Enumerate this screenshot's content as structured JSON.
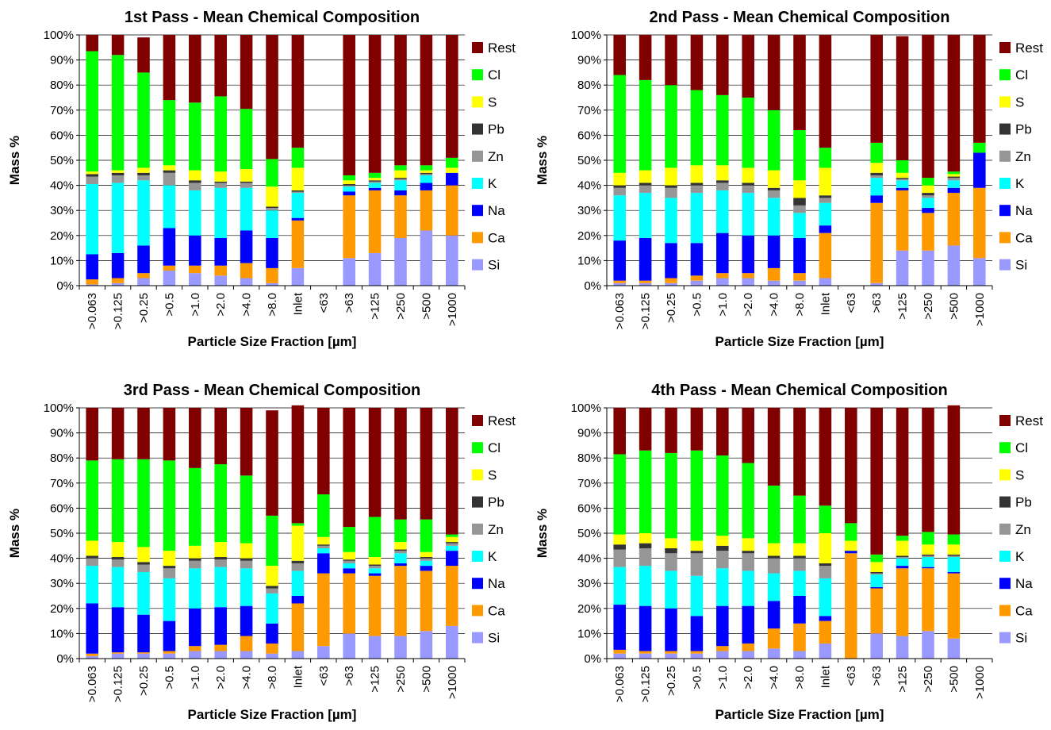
{
  "legend": [
    {
      "key": "rest",
      "label": "Rest",
      "color": "#800000"
    },
    {
      "key": "cl",
      "label": "Cl",
      "color": "#00FF00"
    },
    {
      "key": "s",
      "label": "S",
      "color": "#FFFF00"
    },
    {
      "key": "pb",
      "label": "Pb",
      "color": "#333333"
    },
    {
      "key": "zn",
      "label": "Zn",
      "color": "#969696"
    },
    {
      "key": "k",
      "label": "K",
      "color": "#00FFFF"
    },
    {
      "key": "na",
      "label": "Na",
      "color": "#0000FF"
    },
    {
      "key": "ca",
      "label": "Ca",
      "color": "#FF9900"
    },
    {
      "key": "si",
      "label": "Si",
      "color": "#9999FF"
    }
  ],
  "chart_data": [
    {
      "type": "bar",
      "stacked": true,
      "title": "1st Pass - Mean Chemical Composition",
      "xlabel": "Particle Size Fraction [µm]",
      "ylabel": "Mass %",
      "ylim": [
        0,
        100
      ],
      "yticks": [
        "0%",
        "10%",
        "20%",
        "30%",
        "40%",
        "50%",
        "60%",
        "70%",
        "80%",
        "90%",
        "100%"
      ],
      "legend_position": "right",
      "categories": [
        ">0.063",
        ">0.125",
        ">0.25",
        ">0.5",
        ">1.0",
        ">2.0",
        ">4.0",
        ">8.0",
        "Inlet",
        "<63",
        ">63",
        ">125",
        ">250",
        ">500",
        ">1000"
      ],
      "series": [
        {
          "name": "Si",
          "values": [
            0.5,
            1,
            3,
            6,
            5,
            4,
            3,
            1,
            7,
            0,
            11,
            13,
            19,
            22,
            20
          ]
        },
        {
          "name": "Ca",
          "values": [
            2,
            2,
            2,
            2,
            3,
            4,
            6,
            6,
            19,
            0,
            25,
            25,
            17,
            16,
            20
          ]
        },
        {
          "name": "Na",
          "values": [
            10,
            10,
            11,
            15,
            12,
            11,
            13,
            12,
            1,
            0,
            1.5,
            1,
            2,
            3,
            5
          ]
        },
        {
          "name": "K",
          "values": [
            28,
            28,
            26,
            17,
            18,
            20,
            17,
            11,
            10,
            0,
            2,
            2,
            4,
            3,
            0
          ]
        },
        {
          "name": "Zn",
          "values": [
            3,
            3,
            2,
            5,
            3,
            2,
            2,
            1,
            0.5,
            0,
            0.5,
            0.5,
            0.5,
            0.5,
            0
          ]
        },
        {
          "name": "Pb",
          "values": [
            1,
            1,
            1,
            1,
            1,
            0.5,
            0.5,
            0.5,
            0.5,
            0,
            0.5,
            0.5,
            0.5,
            0.5,
            0
          ]
        },
        {
          "name": "S",
          "values": [
            1,
            1,
            2,
            2,
            4,
            4,
            5,
            8,
            9,
            0,
            1.5,
            1,
            3,
            1,
            2
          ]
        },
        {
          "name": "Cl",
          "values": [
            48,
            46,
            38,
            26,
            27,
            30,
            24,
            11,
            8,
            0,
            2,
            2,
            2,
            2,
            4
          ]
        },
        {
          "name": "Rest",
          "values": [
            6.5,
            8,
            14,
            26,
            27,
            24.5,
            29.5,
            49.5,
            45,
            0,
            56,
            55,
            52,
            52,
            49
          ]
        }
      ]
    },
    {
      "type": "bar",
      "stacked": true,
      "title": "2nd Pass - Mean Chemical Composition",
      "xlabel": "Particle Size Fraction [µm]",
      "ylabel": "Mass %",
      "ylim": [
        0,
        100
      ],
      "yticks": [
        "0%",
        "10%",
        "20%",
        "30%",
        "40%",
        "50%",
        "60%",
        "70%",
        "80%",
        "90%",
        "100%"
      ],
      "legend_position": "right",
      "categories": [
        ">0.063",
        ">0.125",
        ">0.25",
        ">0.5",
        ">1.0",
        ">2.0",
        ">4.0",
        ">8.0",
        "Inlet",
        "<63",
        ">63",
        ">125",
        ">250",
        ">500",
        ">1000"
      ],
      "series": [
        {
          "name": "Si",
          "values": [
            1,
            1,
            1,
            2,
            3,
            3,
            2,
            2,
            3,
            0,
            1,
            14,
            14,
            16,
            11
          ]
        },
        {
          "name": "Ca",
          "values": [
            1,
            1,
            2,
            2,
            2,
            2,
            5,
            3,
            18,
            0,
            32,
            24,
            15,
            21,
            28
          ]
        },
        {
          "name": "Na",
          "values": [
            16,
            17,
            14,
            13,
            16,
            15,
            13,
            14,
            3,
            0,
            3,
            1,
            2,
            2,
            14
          ]
        },
        {
          "name": "K",
          "values": [
            18,
            18,
            18,
            20,
            17,
            17,
            15,
            10,
            9,
            0,
            7,
            3,
            4,
            3,
            0
          ]
        },
        {
          "name": "Zn",
          "values": [
            3,
            3,
            4,
            3,
            3,
            3,
            3,
            3,
            2,
            0,
            1,
            0.5,
            1,
            1,
            0
          ]
        },
        {
          "name": "Pb",
          "values": [
            1,
            1,
            1,
            1,
            1,
            1,
            1,
            3,
            1,
            0,
            1,
            0.5,
            1,
            0.5,
            0
          ]
        },
        {
          "name": "S",
          "values": [
            5,
            5,
            7,
            7,
            6,
            6,
            7,
            7,
            11,
            0,
            4,
            2,
            3,
            1,
            0
          ]
        },
        {
          "name": "Cl",
          "values": [
            39,
            36,
            33,
            30,
            28,
            28,
            24,
            20,
            8,
            0,
            8,
            5,
            3,
            1,
            4
          ]
        },
        {
          "name": "Rest",
          "values": [
            16,
            18,
            20,
            22,
            24,
            25,
            30,
            38,
            45,
            0,
            43,
            49.5,
            57,
            54.5,
            43
          ]
        }
      ]
    },
    {
      "type": "bar",
      "stacked": true,
      "title": "3rd Pass - Mean Chemical Composition",
      "xlabel": "Particle Size Fraction [µm]",
      "ylabel": "Mass %",
      "ylim": [
        0,
        100
      ],
      "yticks": [
        "0%",
        "10%",
        "20%",
        "30%",
        "40%",
        "50%",
        "60%",
        "70%",
        "80%",
        "90%",
        "100%"
      ],
      "legend_position": "right",
      "categories": [
        ">0.063",
        ">0.125",
        ">0.25",
        ">0.5",
        ">1.0",
        ">2.0",
        ">4.0",
        ">8.0",
        "Inlet",
        "<63",
        ">63",
        ">125",
        ">250",
        ">500",
        ">1000"
      ],
      "series": [
        {
          "name": "Si",
          "values": [
            1,
            2,
            2,
            2,
            3,
            3,
            3,
            2,
            3,
            5,
            10,
            9,
            9,
            11,
            13
          ]
        },
        {
          "name": "Ca",
          "values": [
            1,
            0.5,
            0.5,
            1,
            2,
            2.5,
            6,
            4,
            19,
            29,
            24,
            24,
            28,
            24,
            24
          ]
        },
        {
          "name": "Na",
          "values": [
            20,
            18,
            15,
            12,
            15,
            15,
            12,
            8,
            3,
            8,
            2,
            1,
            1,
            2,
            6
          ]
        },
        {
          "name": "K",
          "values": [
            15,
            16,
            17,
            17,
            16,
            16,
            15,
            12,
            10,
            2,
            2,
            2,
            4,
            2,
            2
          ]
        },
        {
          "name": "Zn",
          "values": [
            3,
            3,
            3,
            4,
            3,
            3,
            3,
            2,
            3,
            1,
            1,
            1,
            1,
            1,
            1
          ]
        },
        {
          "name": "Pb",
          "values": [
            1,
            1,
            1,
            1,
            1,
            1,
            1,
            1,
            1,
            0.5,
            0.5,
            0.5,
            0.5,
            0.5,
            0.5
          ]
        },
        {
          "name": "S",
          "values": [
            6,
            6,
            6,
            6,
            5,
            6,
            6,
            8,
            14,
            3,
            3,
            3,
            3,
            2,
            2
          ]
        },
        {
          "name": "Cl",
          "values": [
            32,
            33,
            35,
            36,
            31,
            31,
            27,
            20,
            1,
            17,
            10,
            16,
            9,
            13,
            1
          ]
        },
        {
          "name": "Rest",
          "values": [
            21,
            20.5,
            20.5,
            21,
            24,
            22.5,
            27,
            42,
            47,
            34.5,
            47.5,
            43.5,
            44.5,
            44.5,
            50.5
          ]
        }
      ]
    },
    {
      "type": "bar",
      "stacked": true,
      "title": "4th Pass - Mean Chemical Composition",
      "xlabel": "Particle Size Fraction [µm]",
      "ylabel": "Mass %",
      "ylim": [
        0,
        100
      ],
      "yticks": [
        "0%",
        "10%",
        "20%",
        "30%",
        "40%",
        "50%",
        "60%",
        "70%",
        "80%",
        "90%",
        "100%"
      ],
      "legend_position": "right",
      "categories": [
        ">0.063",
        ">0.125",
        ">0.25",
        ">0.5",
        ">1.0",
        ">2.0",
        ">4.0",
        ">8.0",
        "Inlet",
        "<63",
        ">63",
        ">125",
        ">250",
        ">500",
        ">1000"
      ],
      "series": [
        {
          "name": "Si",
          "values": [
            2,
            2,
            2,
            2,
            3,
            3,
            4,
            3,
            6,
            0,
            10,
            9,
            11,
            8,
            0
          ]
        },
        {
          "name": "Ca",
          "values": [
            1.5,
            1,
            1,
            1,
            2,
            3,
            8,
            11,
            9,
            42,
            18,
            27,
            25,
            26,
            0
          ]
        },
        {
          "name": "Na",
          "values": [
            18,
            18,
            17,
            14,
            16,
            15,
            11,
            11,
            2,
            1,
            0.5,
            1,
            0.5,
            0.5,
            0
          ]
        },
        {
          "name": "K",
          "values": [
            15,
            16,
            15,
            16,
            15,
            14,
            11,
            10,
            15,
            0,
            5,
            3,
            4,
            6,
            0
          ]
        },
        {
          "name": "Zn",
          "values": [
            7,
            7,
            7,
            9,
            7,
            7,
            6,
            5,
            5,
            0,
            0.5,
            0.5,
            0.5,
            0.5,
            0
          ]
        },
        {
          "name": "Pb",
          "values": [
            2,
            2,
            2,
            1,
            2,
            1,
            1,
            1,
            1,
            0,
            0.5,
            0.5,
            0.5,
            0.5,
            0
          ]
        },
        {
          "name": "S",
          "values": [
            4,
            4,
            4,
            4,
            4,
            5,
            5,
            5,
            12,
            4,
            4,
            6,
            4,
            4,
            0
          ]
        },
        {
          "name": "Cl",
          "values": [
            32,
            33,
            34,
            36,
            32,
            30,
            23,
            19,
            11,
            7,
            3,
            2,
            5,
            4,
            0
          ]
        },
        {
          "name": "Rest",
          "values": [
            18.5,
            17,
            18,
            17,
            19,
            22,
            31,
            35,
            39,
            46,
            58.5,
            51,
            49.5,
            51.5,
            0
          ]
        }
      ]
    }
  ]
}
